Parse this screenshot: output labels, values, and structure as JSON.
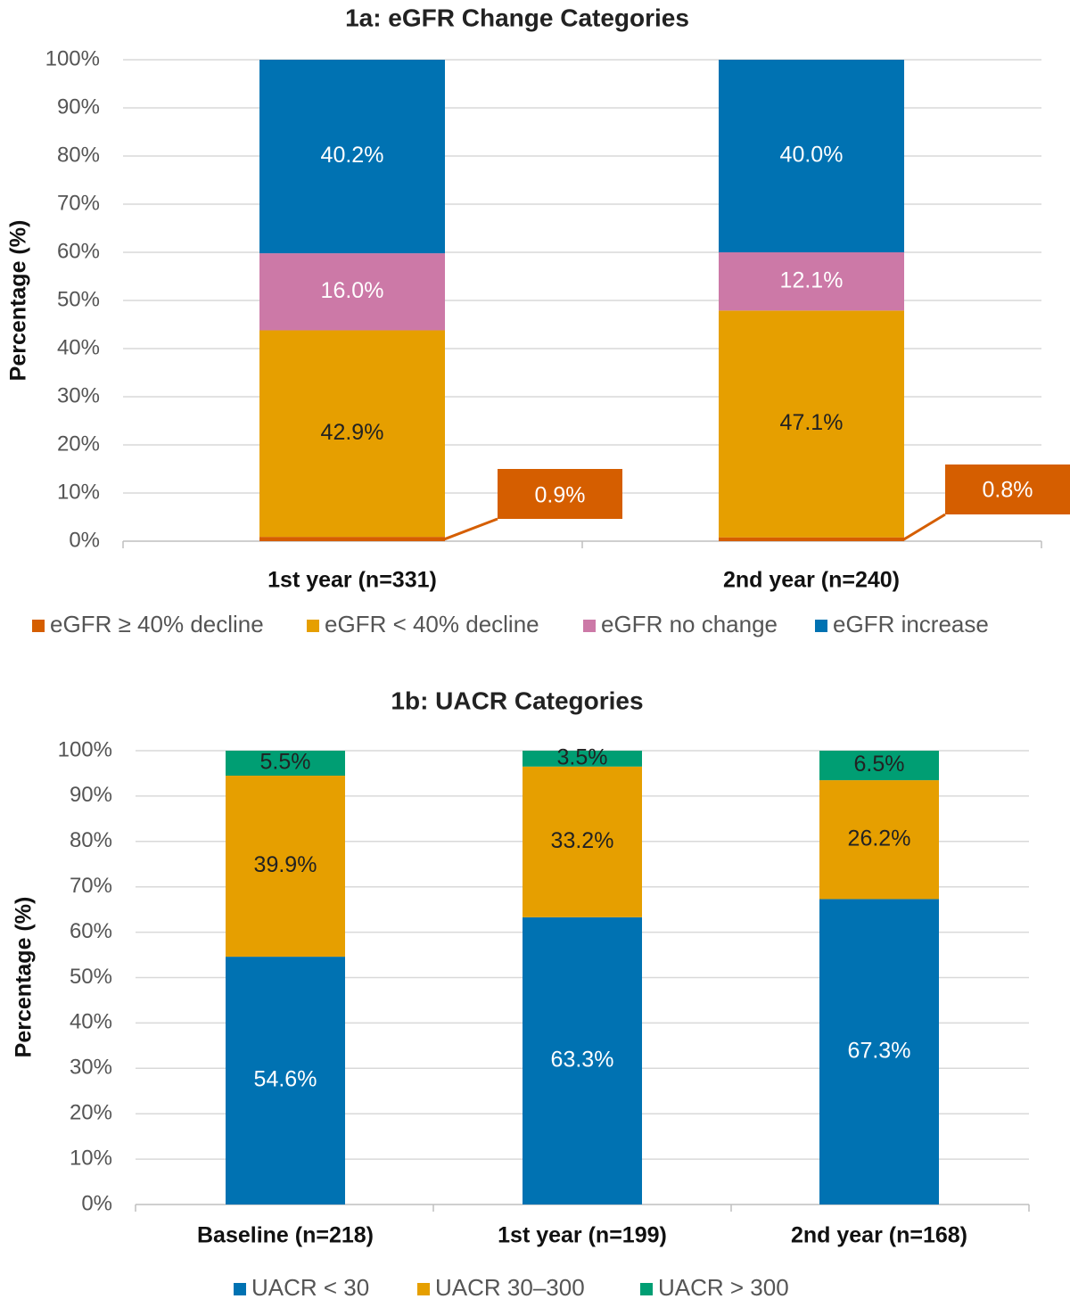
{
  "chart_data": [
    {
      "type": "bar",
      "stacked": true,
      "title": "1a: eGFR Change Categories",
      "ylabel": "Percentage (%)",
      "xlabel": "",
      "ylim": [
        0,
        100
      ],
      "y_ticks": [
        "0%",
        "10%",
        "20%",
        "30%",
        "40%",
        "50%",
        "60%",
        "70%",
        "80%",
        "90%",
        "100%"
      ],
      "grid": true,
      "legend_position": "bottom",
      "categories": [
        "1st year (n=331)",
        "2nd year (n=240)"
      ],
      "series": [
        {
          "name": "eGFR ≥ 40% decline",
          "color": "#D55E00",
          "values": [
            0.9,
            0.8
          ],
          "labels": [
            "0.9%",
            "0.8%"
          ],
          "label_color": "#ffffff",
          "callout": true
        },
        {
          "name": "eGFR < 40% decline",
          "color": "#E69F00",
          "values": [
            42.9,
            47.1
          ],
          "labels": [
            "42.9%",
            "47.1%"
          ],
          "label_color": "#222222"
        },
        {
          "name": "eGFR no change",
          "color": "#CC79A7",
          "values": [
            16.0,
            12.1
          ],
          "labels": [
            "16.0%",
            "12.1%"
          ],
          "label_color": "#ffffff"
        },
        {
          "name": "eGFR increase",
          "color": "#0072B2",
          "values": [
            40.2,
            40.0
          ],
          "labels": [
            "40.2%",
            "40.0%"
          ],
          "label_color": "#ffffff"
        }
      ]
    },
    {
      "type": "bar",
      "stacked": true,
      "title": "1b: UACR Categories",
      "ylabel": "Percentage (%)",
      "xlabel": "",
      "ylim": [
        0,
        100
      ],
      "y_ticks": [
        "0%",
        "10%",
        "20%",
        "30%",
        "40%",
        "50%",
        "60%",
        "70%",
        "80%",
        "90%",
        "100%"
      ],
      "grid": true,
      "legend_position": "bottom",
      "categories": [
        "Baseline (n=218)",
        "1st year (n=199)",
        "2nd year (n=168)"
      ],
      "series": [
        {
          "name": "UACR < 30",
          "color": "#0072B2",
          "values": [
            54.6,
            63.3,
            67.3
          ],
          "labels": [
            "54.6%",
            "63.3%",
            "67.3%"
          ],
          "label_color": "#ffffff"
        },
        {
          "name": "UACR 30–300",
          "color": "#E69F00",
          "values": [
            39.9,
            33.2,
            26.2
          ],
          "labels": [
            "39.9%",
            "33.2%",
            "26.2%"
          ],
          "label_color": "#222222"
        },
        {
          "name": "UACR > 300",
          "color": "#009E73",
          "values": [
            5.5,
            3.5,
            6.5
          ],
          "labels": [
            "5.5%",
            "3.5%",
            "6.5%"
          ],
          "label_color": "#222222"
        }
      ]
    }
  ]
}
